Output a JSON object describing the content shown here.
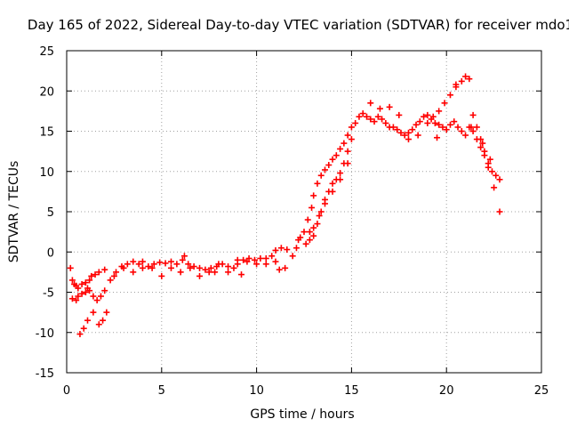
{
  "chart_data": {
    "type": "scatter",
    "title": "Day 165 of 2022, Sidereal Day-to-day VTEC variation (SDTVAR) for receiver mdo1",
    "xlabel": "GPS time / hours",
    "ylabel": "SDTVAR / TECUs",
    "xlim": [
      0,
      25
    ],
    "ylim": [
      -15,
      25
    ],
    "xticks": [
      0,
      5,
      10,
      15,
      20,
      25
    ],
    "yticks": [
      -15,
      -10,
      -5,
      0,
      5,
      10,
      15,
      20,
      25
    ],
    "grid": true,
    "marker": "plus",
    "color": "#ff0000",
    "series": [
      {
        "name": "SDTVAR",
        "x": [
          0.2,
          0.3,
          0.4,
          0.5,
          0.6,
          0.8,
          1.0,
          1.2,
          1.3,
          1.5,
          1.7,
          2.0,
          0.6,
          0.8,
          1.0,
          1.2,
          1.4,
          1.6,
          1.8,
          2.0,
          0.7,
          0.9,
          1.1,
          1.4,
          1.7,
          1.9,
          2.1,
          2.3,
          2.6,
          2.9,
          3.2,
          3.5,
          3.8,
          4.0,
          4.3,
          4.6,
          4.9,
          5.2,
          5.5,
          5.8,
          6.1,
          6.4,
          6.7,
          7.0,
          7.3,
          7.6,
          7.9,
          8.2,
          8.5,
          8.8,
          9.0,
          9.3,
          9.6,
          9.9,
          10.2,
          10.5,
          10.8,
          11.0,
          11.3,
          11.6,
          11.9,
          12.1,
          12.3,
          12.5,
          12.7,
          12.9,
          13.0,
          13.2,
          13.4,
          13.6,
          13.8,
          14.0,
          14.2,
          14.4,
          14.6,
          14.8,
          15.0,
          15.2,
          15.4,
          15.6,
          15.8,
          16.0,
          16.2,
          16.4,
          16.6,
          16.8,
          17.0,
          17.2,
          17.4,
          17.6,
          17.8,
          18.0,
          18.2,
          18.4,
          18.6,
          18.8,
          19.0,
          19.2,
          19.4,
          19.6,
          19.8,
          20.0,
          20.2,
          20.4,
          20.6,
          20.8,
          21.0,
          21.2,
          21.4,
          21.6,
          21.8,
          22.0,
          22.2,
          22.4,
          22.6,
          22.8,
          19.0,
          19.3,
          19.6,
          19.9,
          20.2,
          20.5,
          20.8,
          21.0,
          21.2,
          21.4,
          21.6,
          21.8,
          22.0,
          22.2,
          22.5,
          22.8,
          13.0,
          13.2,
          13.4,
          13.6,
          13.8,
          14.0,
          14.2,
          14.4,
          14.6,
          14.8,
          15.0,
          12.6,
          12.8,
          13.0,
          13.3,
          13.6,
          14.0,
          14.4,
          14.8,
          2.5,
          3.0,
          3.5,
          4.0,
          4.5,
          5.0,
          5.5,
          6.0,
          6.5,
          7.0,
          7.5,
          8.0,
          8.5,
          9.0,
          9.5,
          10.0,
          10.5,
          11.0,
          11.5,
          6.2,
          7.8,
          9.2,
          11.2,
          12.2,
          12.8,
          16.0,
          16.5,
          17.0,
          17.5,
          18.0,
          18.5,
          19.5,
          20.5,
          21.3,
          21.9,
          22.3,
          0.3,
          0.5,
          1.1
        ],
        "y": [
          -2.0,
          -3.5,
          -4.0,
          -4.2,
          -4.5,
          -4.0,
          -3.8,
          -3.5,
          -3.0,
          -2.8,
          -2.5,
          -2.2,
          -5.5,
          -5.2,
          -5.0,
          -4.8,
          -5.5,
          -6.0,
          -5.5,
          -4.8,
          -10.2,
          -9.5,
          -8.5,
          -7.5,
          -9.0,
          -8.5,
          -7.5,
          -3.5,
          -2.5,
          -1.8,
          -1.5,
          -1.2,
          -1.5,
          -2.0,
          -1.8,
          -1.5,
          -1.3,
          -1.4,
          -1.2,
          -1.5,
          -1.0,
          -1.5,
          -1.8,
          -2.0,
          -2.2,
          -2.0,
          -1.8,
          -1.5,
          -2.5,
          -2.0,
          -1.5,
          -1.0,
          -0.8,
          -1.0,
          -0.8,
          -1.5,
          -0.5,
          0.2,
          0.5,
          0.3,
          -0.5,
          0.5,
          1.8,
          2.5,
          4.0,
          5.5,
          7.0,
          8.5,
          9.5,
          10.2,
          10.8,
          11.5,
          12.0,
          12.8,
          13.5,
          14.5,
          15.5,
          16.0,
          16.8,
          17.2,
          16.8,
          16.5,
          16.2,
          16.8,
          16.5,
          16.0,
          15.5,
          15.5,
          15.2,
          14.8,
          14.5,
          14.8,
          15.2,
          15.8,
          16.2,
          16.8,
          17.0,
          16.5,
          16.0,
          15.8,
          15.5,
          15.2,
          15.8,
          16.2,
          15.5,
          15.0,
          14.5,
          15.5,
          15.0,
          14.0,
          13.0,
          12.0,
          11.0,
          10.0,
          9.5,
          9.0,
          16.0,
          16.8,
          17.5,
          18.5,
          19.5,
          20.5,
          21.2,
          21.8,
          21.5,
          17.0,
          15.5,
          14.0,
          12.5,
          10.5,
          8.0,
          5.0,
          2.0,
          3.5,
          5.0,
          6.5,
          7.5,
          8.5,
          9.0,
          9.8,
          11.0,
          12.5,
          14.0,
          1.0,
          1.5,
          3.0,
          4.5,
          6.0,
          7.5,
          9.0,
          11.0,
          -3.0,
          -2.0,
          -2.5,
          -1.2,
          -2.0,
          -3.0,
          -2.0,
          -2.5,
          -2.0,
          -3.0,
          -2.5,
          -1.5,
          -1.8,
          -1.0,
          -1.2,
          -1.5,
          -0.8,
          -1.2,
          -2.0,
          -0.5,
          -2.5,
          -2.8,
          -2.2,
          1.5,
          2.5,
          18.5,
          17.8,
          18.0,
          17.0,
          14.0,
          14.5,
          14.2,
          20.8,
          15.5,
          13.5,
          11.5,
          -5.8,
          -6.0,
          -4.5
        ]
      }
    ]
  }
}
